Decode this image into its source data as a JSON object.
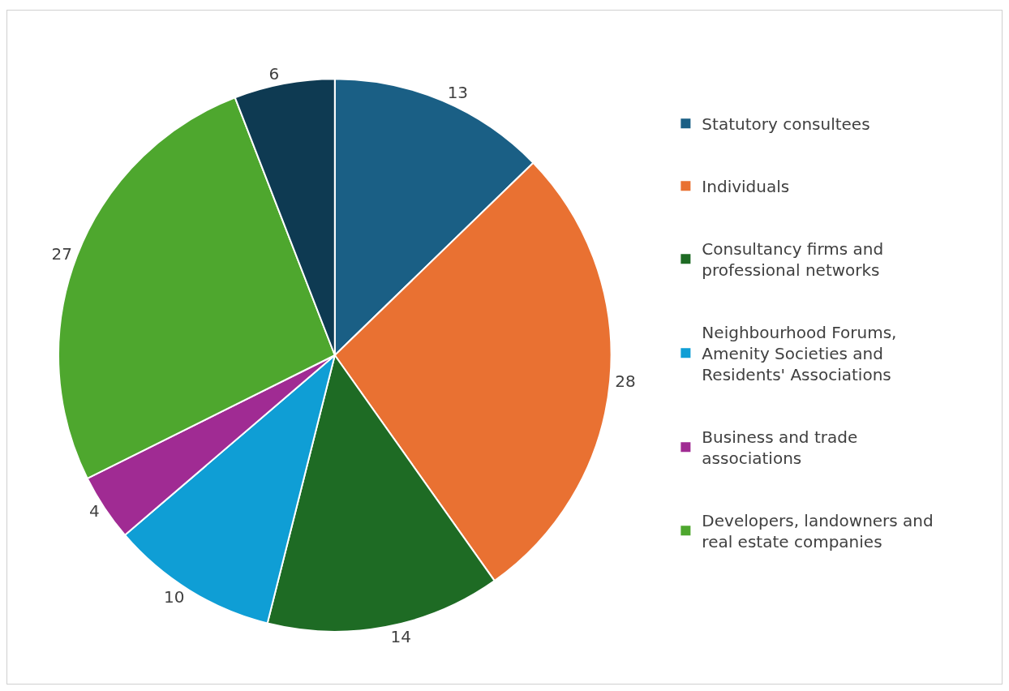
{
  "chart_data": {
    "type": "pie",
    "categories": [
      "Statutory consultees",
      "Individuals",
      "Consultancy firms and professional networks",
      "Neighbourhood Forums, Amenity Societies and Residents' Associations",
      "Business and trade associations",
      "Developers, landowners and real estate companies",
      null
    ],
    "values": [
      13,
      28,
      14,
      10,
      4,
      27,
      6
    ],
    "colors": [
      "#1a5f85",
      "#e97132",
      "#1e6b24",
      "#0f9ed5",
      "#a02b93",
      "#4ea72e",
      "#0e3a52"
    ],
    "data_labels": true,
    "legend": "right"
  }
}
